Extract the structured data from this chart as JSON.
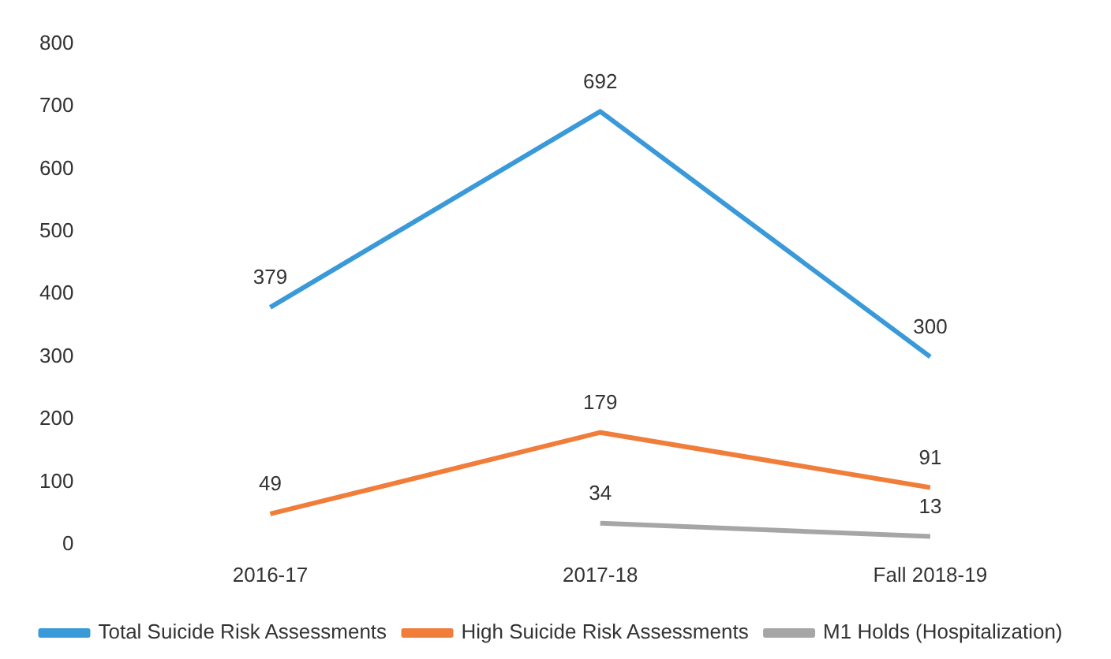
{
  "chart_data": {
    "type": "line",
    "categories": [
      "2016-17",
      "2017-18",
      "Fall 2018-19"
    ],
    "series": [
      {
        "name": "Total Suicide Risk Assessments",
        "color": "#3a9ad9",
        "values": [
          379,
          692,
          300
        ]
      },
      {
        "name": "High Suicide Risk Assessments",
        "color": "#f07d3a",
        "values": [
          49,
          179,
          91
        ]
      },
      {
        "name": "M1 Holds (Hospitalization)",
        "color": "#a6a6a6",
        "values": [
          null,
          34,
          13
        ]
      }
    ],
    "ylim": [
      0,
      800
    ],
    "yticks": [
      0,
      100,
      200,
      300,
      400,
      500,
      600,
      700,
      800
    ],
    "grid": false,
    "legend": "bottom",
    "data_labels": true,
    "marker": "none"
  }
}
